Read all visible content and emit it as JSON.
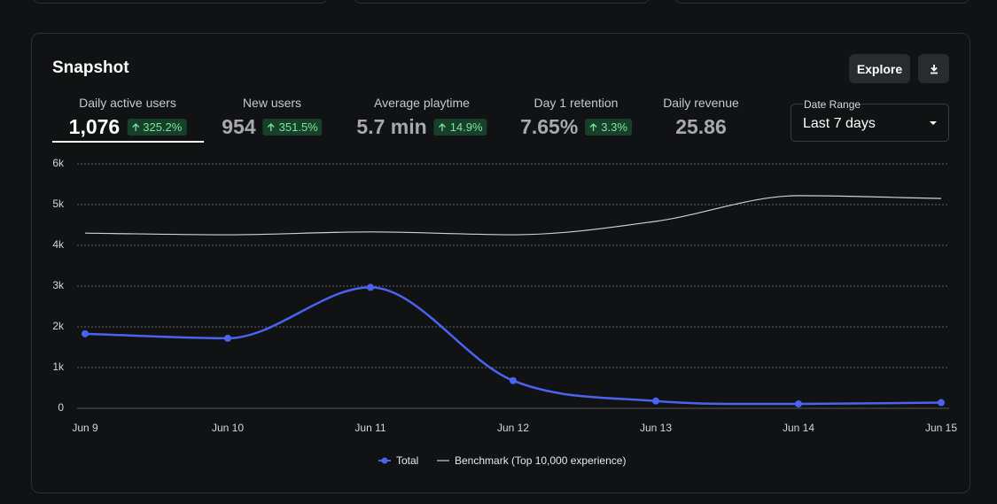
{
  "header": {
    "title": "Snapshot",
    "explore": "Explore"
  },
  "metrics": [
    {
      "label": "Daily active users",
      "value": "1,076",
      "delta": "325.2%"
    },
    {
      "label": "New users",
      "value": "954",
      "delta": "351.5%"
    },
    {
      "label": "Average playtime",
      "value": "5.7 min",
      "delta": "14.9%"
    },
    {
      "label": "Day 1 retention",
      "value": "7.65%",
      "delta": "3.3%"
    },
    {
      "label": "Daily revenue",
      "value": "25.86"
    }
  ],
  "date_range": {
    "label": "Date Range",
    "value": "Last 7 days"
  },
  "chart_data": {
    "type": "line",
    "categories": [
      "Jun 9",
      "Jun 10",
      "Jun 11",
      "Jun 12",
      "Jun 13",
      "Jun 14",
      "Jun 15"
    ],
    "series": [
      {
        "name": "Total",
        "color": "#4a63f0",
        "values": [
          1830,
          1720,
          2970,
          680,
          180,
          110,
          140
        ]
      },
      {
        "name": "Benchmark (Top 10,000 experience)",
        "color": "#d0d0d2",
        "values": [
          4300,
          4260,
          4330,
          4260,
          4590,
          5220,
          5150
        ]
      }
    ],
    "ylim": [
      0,
      6000
    ],
    "yticks": [
      0,
      {
        "value": 1000,
        "label": "1k"
      },
      {
        "value": 2000,
        "label": "2k"
      },
      {
        "value": 3000,
        "label": "3k"
      },
      {
        "value": 4000,
        "label": "4k"
      },
      {
        "value": 5000,
        "label": "5k"
      },
      {
        "value": 6000,
        "label": "6k"
      }
    ],
    "grid": true,
    "legend": "bottom"
  }
}
